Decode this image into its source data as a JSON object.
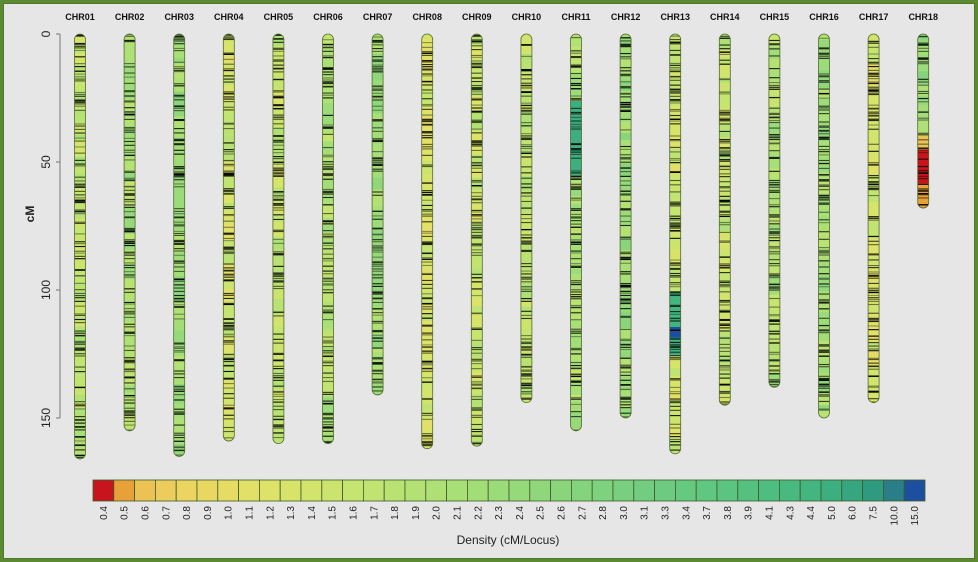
{
  "chart_data": {
    "type": "heatmap",
    "title": "",
    "ylabel": "cM",
    "ylim": [
      0,
      170
    ],
    "yticks": [
      "0",
      "50",
      "100",
      "150"
    ],
    "ytick_values": [
      0,
      50,
      100,
      150
    ],
    "chromosomes": [
      {
        "name": "CHR01",
        "length": 166
      },
      {
        "name": "CHR02",
        "length": 155
      },
      {
        "name": "CHR03",
        "length": 165
      },
      {
        "name": "CHR04",
        "length": 159
      },
      {
        "name": "CHR05",
        "length": 160
      },
      {
        "name": "CHR06",
        "length": 160
      },
      {
        "name": "CHR07",
        "length": 141
      },
      {
        "name": "CHR08",
        "length": 162
      },
      {
        "name": "CHR09",
        "length": 161
      },
      {
        "name": "CHR10",
        "length": 144
      },
      {
        "name": "CHR11",
        "length": 155
      },
      {
        "name": "CHR12",
        "length": 150
      },
      {
        "name": "CHR13",
        "length": 164
      },
      {
        "name": "CHR14",
        "length": 145
      },
      {
        "name": "CHR15",
        "length": 138
      },
      {
        "name": "CHR16",
        "length": 150
      },
      {
        "name": "CHR17",
        "length": 144
      },
      {
        "name": "CHR18",
        "length": 68
      }
    ],
    "legend": {
      "title": "Density (cM/Locus)",
      "placement": "bottom",
      "labels": [
        "0.4",
        "0.5",
        "0.6",
        "0.7",
        "0.8",
        "0.9",
        "1.0",
        "1.1",
        "1.2",
        "1.3",
        "1.4",
        "1.5",
        "1.6",
        "1.7",
        "1.8",
        "1.9",
        "2.0",
        "2.1",
        "2.2",
        "2.3",
        "2.4",
        "2.5",
        "2.6",
        "2.7",
        "2.8",
        "3.0",
        "3.1",
        "3.3",
        "3.4",
        "3.7",
        "3.8",
        "3.9",
        "4.1",
        "4.3",
        "4.4",
        "5.0",
        "6.0",
        "7.5",
        "10.0",
        "15.0"
      ],
      "colors": [
        "#c8141c",
        "#e8a038",
        "#ecc254",
        "#eccd5c",
        "#ebd460",
        "#e8d862",
        "#e6dc64",
        "#e2e066",
        "#dde268",
        "#d8e36a",
        "#d2e46c",
        "#cce46e",
        "#c6e470",
        "#c0e372",
        "#bae273",
        "#b4e174",
        "#aee076",
        "#a8df77",
        "#a2dd78",
        "#9cdb79",
        "#96d97a",
        "#90d77b",
        "#8ad57c",
        "#84d37d",
        "#7ed17e",
        "#78cf7f",
        "#72cd80",
        "#6ccb80",
        "#66c980",
        "#60c780",
        "#5ac480",
        "#54c180",
        "#4ebe80",
        "#48ba80",
        "#42b580",
        "#3cae80",
        "#36a680",
        "#2e9a80",
        "#2a7e88",
        "#1c4fa0"
      ]
    }
  }
}
